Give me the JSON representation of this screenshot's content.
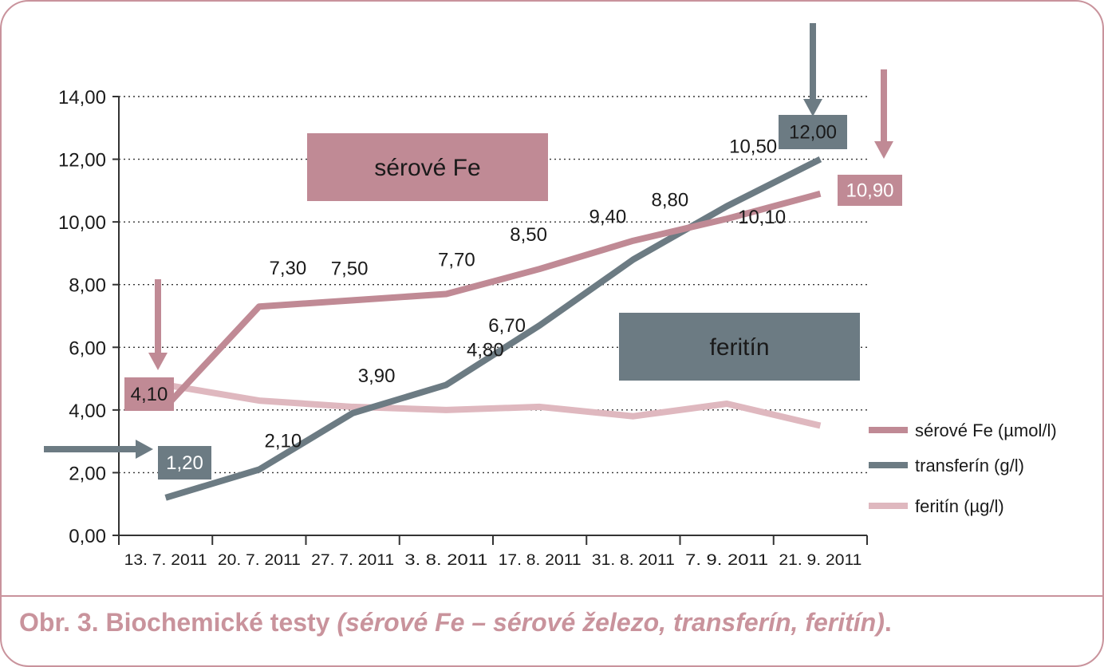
{
  "chart_data": {
    "type": "line",
    "categories": [
      "13. 7. 2011",
      "20. 7. 2011",
      "27. 7. 2011",
      "3. 8. 2011",
      "17. 8. 2011",
      "31. 8. 2011",
      "7. 9. 2011",
      "21. 9. 2011"
    ],
    "y_ticks": [
      "0,00",
      "2,00",
      "4,00",
      "6,00",
      "8,00",
      "10,00",
      "12,00",
      "14,00"
    ],
    "ylim": [
      0,
      14
    ],
    "grid": "horizontal dotted",
    "legend_position": "right",
    "series": [
      {
        "name": "sérové Fe (µmol/l)",
        "color": "#c08a95",
        "values": [
          4.1,
          7.3,
          7.5,
          7.7,
          8.5,
          9.4,
          10.1,
          10.9
        ],
        "labels": [
          "4,10",
          "7,30",
          "7,50",
          "7,70",
          "8,50",
          "9,40",
          "10,10",
          "10,90"
        ]
      },
      {
        "name": "transferín (g/l)",
        "color": "#6c7b83",
        "values": [
          1.2,
          2.1,
          3.9,
          4.8,
          6.7,
          8.8,
          10.5,
          12.0
        ],
        "labels": [
          "1,20",
          "2,10",
          "3,90",
          "4,80",
          "6,70",
          "8,80",
          "10,50",
          "12,00"
        ]
      },
      {
        "name": "feritín (µg/l)",
        "color": "#dfb8bf",
        "values": [
          4.8,
          4.3,
          4.1,
          4.0,
          4.1,
          3.8,
          4.2,
          3.5
        ]
      }
    ],
    "annotations": {
      "fe_box": "sérové Fe",
      "feritin_box": "feritín"
    }
  },
  "caption": {
    "prefix": "Obr. 3. Biochemické testy ",
    "italic": "(sérové Fe – sérové železo, transferín, feritín)",
    "suffix": "."
  }
}
